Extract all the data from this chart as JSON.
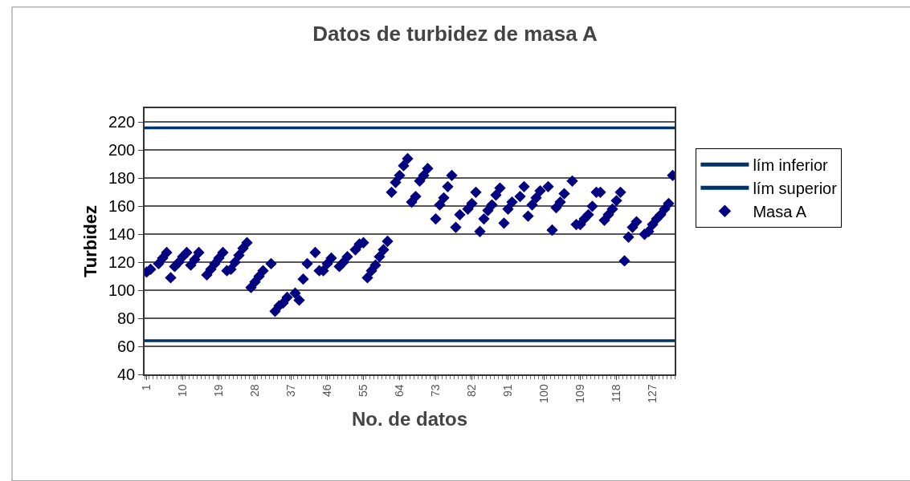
{
  "chart_data": {
    "type": "scatter",
    "title": "Datos de turbidez de masa A",
    "xlabel": "No. de datos",
    "ylabel": "Turbidez",
    "xlim": [
      0.5,
      132.5
    ],
    "xticks": [
      1,
      10,
      19,
      28,
      37,
      46,
      55,
      64,
      73,
      82,
      91,
      100,
      109,
      118,
      127
    ],
    "ylim": [
      40,
      230
    ],
    "yticks": [
      40,
      60,
      80,
      100,
      120,
      140,
      160,
      180,
      200,
      220
    ],
    "grid": "y",
    "legend": "right",
    "series": [
      {
        "name": "lím inferior",
        "type": "line",
        "color": "#003366",
        "x": [
          0.5,
          132.5
        ],
        "values": [
          64,
          64
        ]
      },
      {
        "name": "lím superior",
        "type": "line",
        "color": "#003366",
        "x": [
          0.5,
          132.5
        ],
        "values": [
          216,
          216
        ]
      },
      {
        "name": "Masa A",
        "marker": "diamond",
        "color": "#000080",
        "x": [
          1,
          2,
          4,
          5,
          6,
          7,
          8,
          9,
          10,
          11,
          12,
          13,
          14,
          16,
          17,
          18,
          19,
          20,
          21,
          22,
          23,
          24,
          25,
          26,
          27,
          28,
          29,
          30,
          32,
          33,
          34,
          35,
          36,
          38,
          39,
          40,
          41,
          43,
          44,
          45,
          46,
          47,
          49,
          50,
          51,
          53,
          54,
          55,
          56,
          57,
          58,
          59,
          60,
          61,
          62,
          63,
          64,
          65,
          66,
          67,
          68,
          69,
          70,
          71,
          73,
          74,
          75,
          76,
          77,
          78,
          79,
          81,
          82,
          83,
          84,
          85,
          86,
          87,
          88,
          89,
          90,
          91,
          92,
          94,
          95,
          96,
          97,
          98,
          99,
          101,
          102,
          103,
          104,
          105,
          107,
          108,
          109,
          110,
          111,
          112,
          113,
          114,
          115,
          116,
          117,
          118,
          119,
          120,
          121,
          122,
          123,
          125,
          126,
          127,
          128,
          129,
          130,
          131,
          132
        ],
        "values": [
          113,
          115,
          119,
          123,
          127,
          109,
          117,
          120,
          124,
          127,
          118,
          122,
          127,
          111,
          115,
          119,
          123,
          127,
          114,
          115,
          120,
          125,
          130,
          134,
          102,
          106,
          110,
          114,
          119,
          85,
          89,
          91,
          95,
          98,
          93,
          108,
          119,
          127,
          114,
          114,
          119,
          123,
          117,
          120,
          124,
          129,
          133,
          134,
          109,
          114,
          118,
          124,
          129,
          135,
          170,
          177,
          182,
          189,
          194,
          163,
          167,
          178,
          182,
          187,
          151,
          161,
          166,
          174,
          182,
          145,
          154,
          158,
          162,
          170,
          142,
          151,
          157,
          161,
          168,
          173,
          148,
          158,
          163,
          167,
          174,
          153,
          161,
          166,
          171,
          174,
          143,
          159,
          163,
          169,
          178,
          147,
          147,
          151,
          154,
          160,
          170,
          170,
          150,
          154,
          158,
          164,
          170,
          121,
          138,
          145,
          149,
          140,
          142,
          147,
          151,
          154,
          158,
          162,
          182
        ]
      }
    ]
  }
}
